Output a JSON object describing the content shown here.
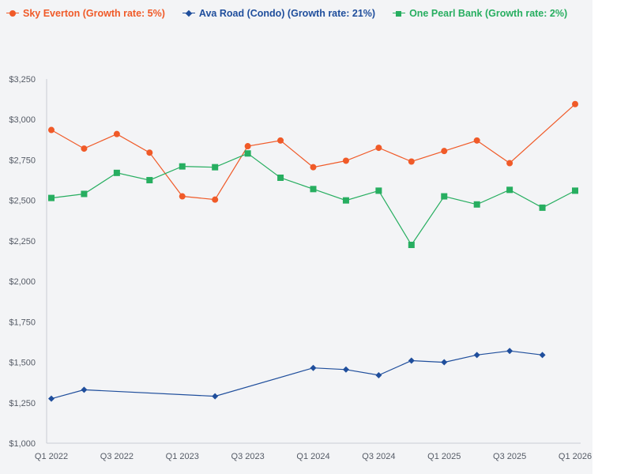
{
  "chart_data": {
    "type": "line",
    "title": "",
    "xlabel": "",
    "ylabel": "",
    "categories": [
      "Q1 2022",
      "Q2 2022",
      "Q3 2022",
      "Q4 2022",
      "Q1 2023",
      "Q2 2023",
      "Q3 2023",
      "Q4 2023",
      "Q1 2024",
      "Q2 2024",
      "Q3 2024",
      "Q4 2024",
      "Q1 2025",
      "Q2 2025",
      "Q3 2025",
      "Q4 2025",
      "Q1 2026"
    ],
    "x_tick_labels": [
      "Q1 2022",
      "Q3 2022",
      "Q1 2023",
      "Q3 2023",
      "Q1 2024",
      "Q3 2024",
      "Q1 2025",
      "Q3 2025",
      "Q1 2026"
    ],
    "y_ticks": [
      1000,
      1250,
      1500,
      1750,
      2000,
      2250,
      2500,
      2750,
      3000,
      3250
    ],
    "y_tick_labels": [
      "$1,000",
      "$1,250",
      "$1,500",
      "$1,750",
      "$2,000",
      "$2,250",
      "$2,500",
      "$2,750",
      "$3,000",
      "$3,250"
    ],
    "ylim": [
      1000,
      3250
    ],
    "grid": false,
    "legend_position": "top-left",
    "series": [
      {
        "name": "Sky Everton (Growth rate: 5%)",
        "color": "#f05a28",
        "marker": "circle",
        "values": [
          2935,
          2820,
          2910,
          2795,
          2525,
          2505,
          2835,
          2870,
          2705,
          2745,
          2825,
          2740,
          2805,
          2870,
          2730,
          null,
          3095
        ]
      },
      {
        "name": "Ava Road (Condo) (Growth rate: 21%)",
        "color": "#1f4e9c",
        "marker": "diamond",
        "values": [
          1275,
          1330,
          null,
          null,
          null,
          1290,
          null,
          null,
          1465,
          1455,
          1420,
          1510,
          1500,
          1545,
          1570,
          1545,
          null
        ]
      },
      {
        "name": "One Pearl Bank (Growth rate: 2%)",
        "color": "#27ae60",
        "marker": "square",
        "values": [
          2515,
          2540,
          2670,
          2625,
          2710,
          2705,
          2790,
          2640,
          2570,
          2500,
          2560,
          2225,
          2525,
          2475,
          2565,
          2455,
          2560
        ]
      }
    ]
  }
}
